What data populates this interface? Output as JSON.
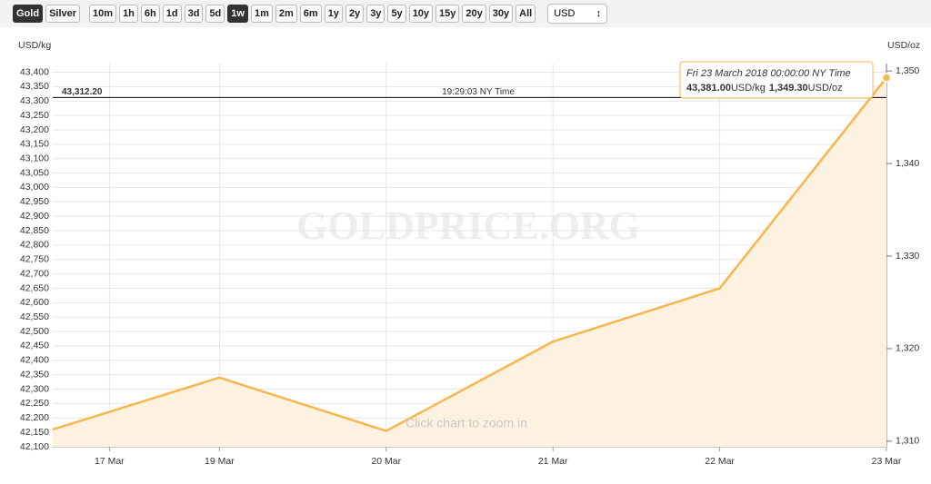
{
  "toolbar": {
    "metals": [
      "Gold",
      "Silver"
    ],
    "ranges": [
      "10m",
      "1h",
      "6h",
      "1d",
      "3d",
      "5d",
      "1w",
      "1m",
      "2m",
      "6m",
      "1y",
      "2y",
      "3y",
      "5y",
      "10y",
      "15y",
      "20y",
      "30y",
      "All"
    ],
    "currency": "USD"
  },
  "chart_data": {
    "type": "area",
    "color": "#f9b54e",
    "fill": "#fdf1df",
    "y_label": "USD/kg",
    "y2_label": "USD/oz",
    "x": [
      0,
      1,
      2,
      3,
      4,
      5
    ],
    "xlim": [
      0,
      5
    ],
    "xticks": [
      {
        "value": 0.34,
        "label": "17 Mar"
      },
      {
        "value": 1,
        "label": "19 Mar"
      },
      {
        "value": 2,
        "label": "20 Mar"
      },
      {
        "value": 3,
        "label": "21 Mar"
      },
      {
        "value": 4,
        "label": "22 Mar"
      },
      {
        "value": 5,
        "label": "23 Mar"
      }
    ],
    "values": [
      42160,
      42340,
      42155,
      42465,
      42650,
      43381
    ],
    "ylim": [
      42100,
      43430
    ],
    "yticks": [
      {
        "value": 42100,
        "label": "42,100"
      },
      {
        "value": 42150,
        "label": "42,150"
      },
      {
        "value": 42200,
        "label": "42,200"
      },
      {
        "value": 42250,
        "label": "42,250"
      },
      {
        "value": 42300,
        "label": "42,300"
      },
      {
        "value": 42350,
        "label": "42,350"
      },
      {
        "value": 42400,
        "label": "42,400"
      },
      {
        "value": 42450,
        "label": "42,450"
      },
      {
        "value": 42500,
        "label": "42,500"
      },
      {
        "value": 42550,
        "label": "42,550"
      },
      {
        "value": 42600,
        "label": "42,600"
      },
      {
        "value": 42650,
        "label": "42,650"
      },
      {
        "value": 42700,
        "label": "42,700"
      },
      {
        "value": 42750,
        "label": "42,750"
      },
      {
        "value": 42800,
        "label": "42,800"
      },
      {
        "value": 42850,
        "label": "42,850"
      },
      {
        "value": 42900,
        "label": "42,900"
      },
      {
        "value": 42950,
        "label": "42,950"
      },
      {
        "value": 43000,
        "label": "43,000"
      },
      {
        "value": 43050,
        "label": "43,050"
      },
      {
        "value": 43100,
        "label": "43,100"
      },
      {
        "value": 43150,
        "label": "43,150"
      },
      {
        "value": 43200,
        "label": "43,200"
      },
      {
        "value": 43250,
        "label": "43,250"
      },
      {
        "value": 43300,
        "label": "43,300"
      },
      {
        "value": 43350,
        "label": "43,350"
      },
      {
        "value": 43400,
        "label": "43,400"
      }
    ],
    "y2lim": [
      1309.4,
      1350.8
    ],
    "y2ticks": [
      {
        "value": 1310,
        "label": "1,310"
      },
      {
        "value": 1320,
        "label": "1,320"
      },
      {
        "value": 1330,
        "label": "1,330"
      },
      {
        "value": 1340,
        "label": "1,340"
      },
      {
        "value": 1350,
        "label": "1,350"
      }
    ],
    "grid": true,
    "crosshair": {
      "value": 43312.2,
      "value_label": "43,312.20",
      "time": "19:29:03 NY Time"
    },
    "tooltip": {
      "date": "Fri 23 March 2018 00:00:00 NY Time",
      "kg_value": "43,381.00",
      "kg_unit": "USD/kg",
      "oz_value": "1,349.30",
      "oz_unit": "USD/oz"
    },
    "watermark": "GOLDPRICE.ORG",
    "hint": "Click chart to zoom in"
  }
}
